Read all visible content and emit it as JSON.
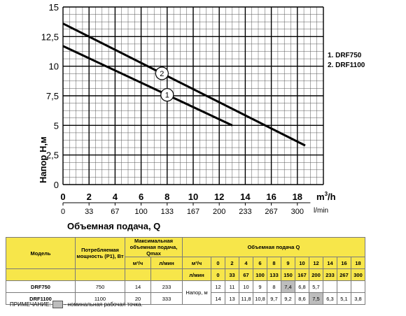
{
  "chart_data": {
    "type": "line",
    "xlabel": "Объемная подача, Q",
    "ylabel": "Напор  H,м",
    "x_unit_top": "m",
    "x_unit_top_sup": "3",
    "x_unit_top_suffix": "/h",
    "x_unit_bottom": "l/min",
    "xlim": [
      0,
      20
    ],
    "ylim": [
      0,
      15
    ],
    "x_ticks": [
      "0",
      "2",
      "4",
      "6",
      "8",
      "10",
      "12",
      "14",
      "16",
      "18"
    ],
    "x_ticks_lmin": [
      "0",
      "33",
      "67",
      "100",
      "133",
      "167",
      "200",
      "233",
      "267",
      "300"
    ],
    "y_ticks": [
      "0",
      "2,5",
      "5",
      "7,5",
      "10",
      "12,5",
      "15"
    ],
    "grid": true,
    "series": [
      {
        "name": "1",
        "x": [
          0,
          13
        ],
        "y": [
          11.7,
          5.0
        ]
      },
      {
        "name": "2",
        "x": [
          0,
          18.6
        ],
        "y": [
          13.6,
          3.3
        ]
      }
    ]
  },
  "legend": [
    "1. DRF750",
    "2. DRF1100"
  ],
  "table": {
    "h_model": "Модель",
    "h_power": "Потребляемая мощность (P1), Вт",
    "h_max": "Максимальная объемная подача, Qmax",
    "h_flow": "Объемная подача Q",
    "u_m3h": "м³/ч",
    "u_lmin": "л/мин",
    "head_label": "Напор, м",
    "q_m3h": [
      "0",
      "2",
      "4",
      "6",
      "8",
      "9",
      "10",
      "12",
      "14",
      "16",
      "18"
    ],
    "q_lmin": [
      "0",
      "33",
      "67",
      "100",
      "133",
      "150",
      "167",
      "200",
      "233",
      "267",
      "300"
    ],
    "rows": [
      {
        "model": "DRF750",
        "power": "750",
        "qmax_m3h": "14",
        "qmax_lmin": "233",
        "heads": [
          "12",
          "11",
          "10",
          "9",
          "8",
          "7,4",
          "6,8",
          "5,7",
          "",
          "",
          ""
        ]
      },
      {
        "model": "DRF1100",
        "power": "1100",
        "qmax_m3h": "20",
        "qmax_lmin": "333",
        "heads": [
          "14",
          "13",
          "11,8",
          "10,8",
          "9,7",
          "9,2",
          "8,6",
          "7,5",
          "6,3",
          "5,1",
          "3,8"
        ]
      }
    ]
  },
  "note": {
    "prefix": "ПРИМЕЧАНИЕ:",
    "text": "- номинальная рабочая точка."
  }
}
